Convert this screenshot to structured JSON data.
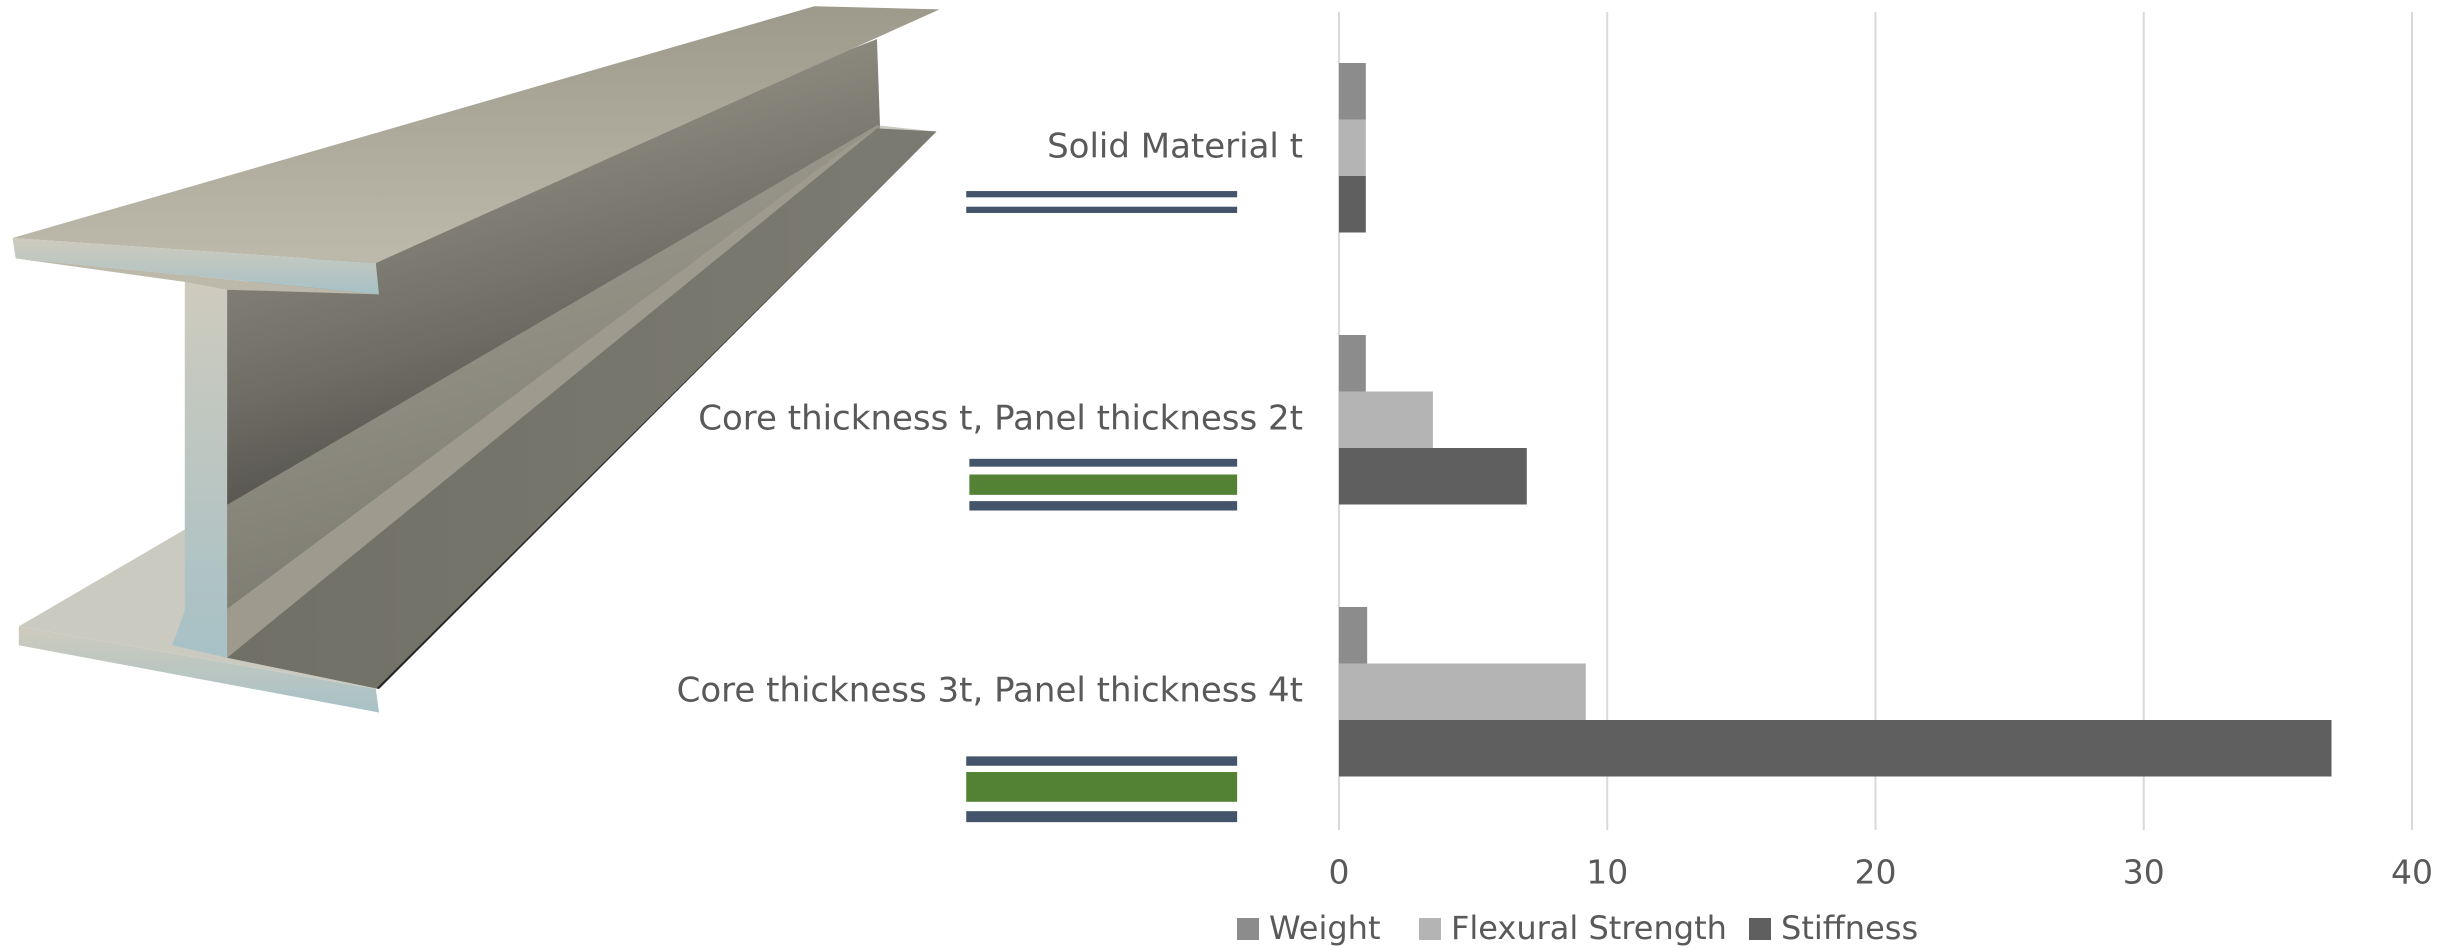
{
  "chart_data": {
    "type": "bar",
    "orientation": "horizontal",
    "categories": [
      "Solid Material t",
      "Core thickness t, Panel thickness 2t",
      "Core thickness 3t, Panel thickness 4t"
    ],
    "series": [
      {
        "name": "Weight",
        "color": "#8c8c8c",
        "values": [
          1,
          1,
          1.05
        ]
      },
      {
        "name": "Flexural Strength",
        "color": "#b4b4b4",
        "values": [
          1,
          3.5,
          9.2
        ]
      },
      {
        "name": "Stiffness",
        "color": "#5f5f5f",
        "values": [
          1,
          7,
          37
        ]
      }
    ],
    "xlim": [
      0,
      40
    ],
    "xticks": [
      0,
      10,
      20,
      30,
      40
    ],
    "grid": true,
    "legend": "bottom"
  }
}
